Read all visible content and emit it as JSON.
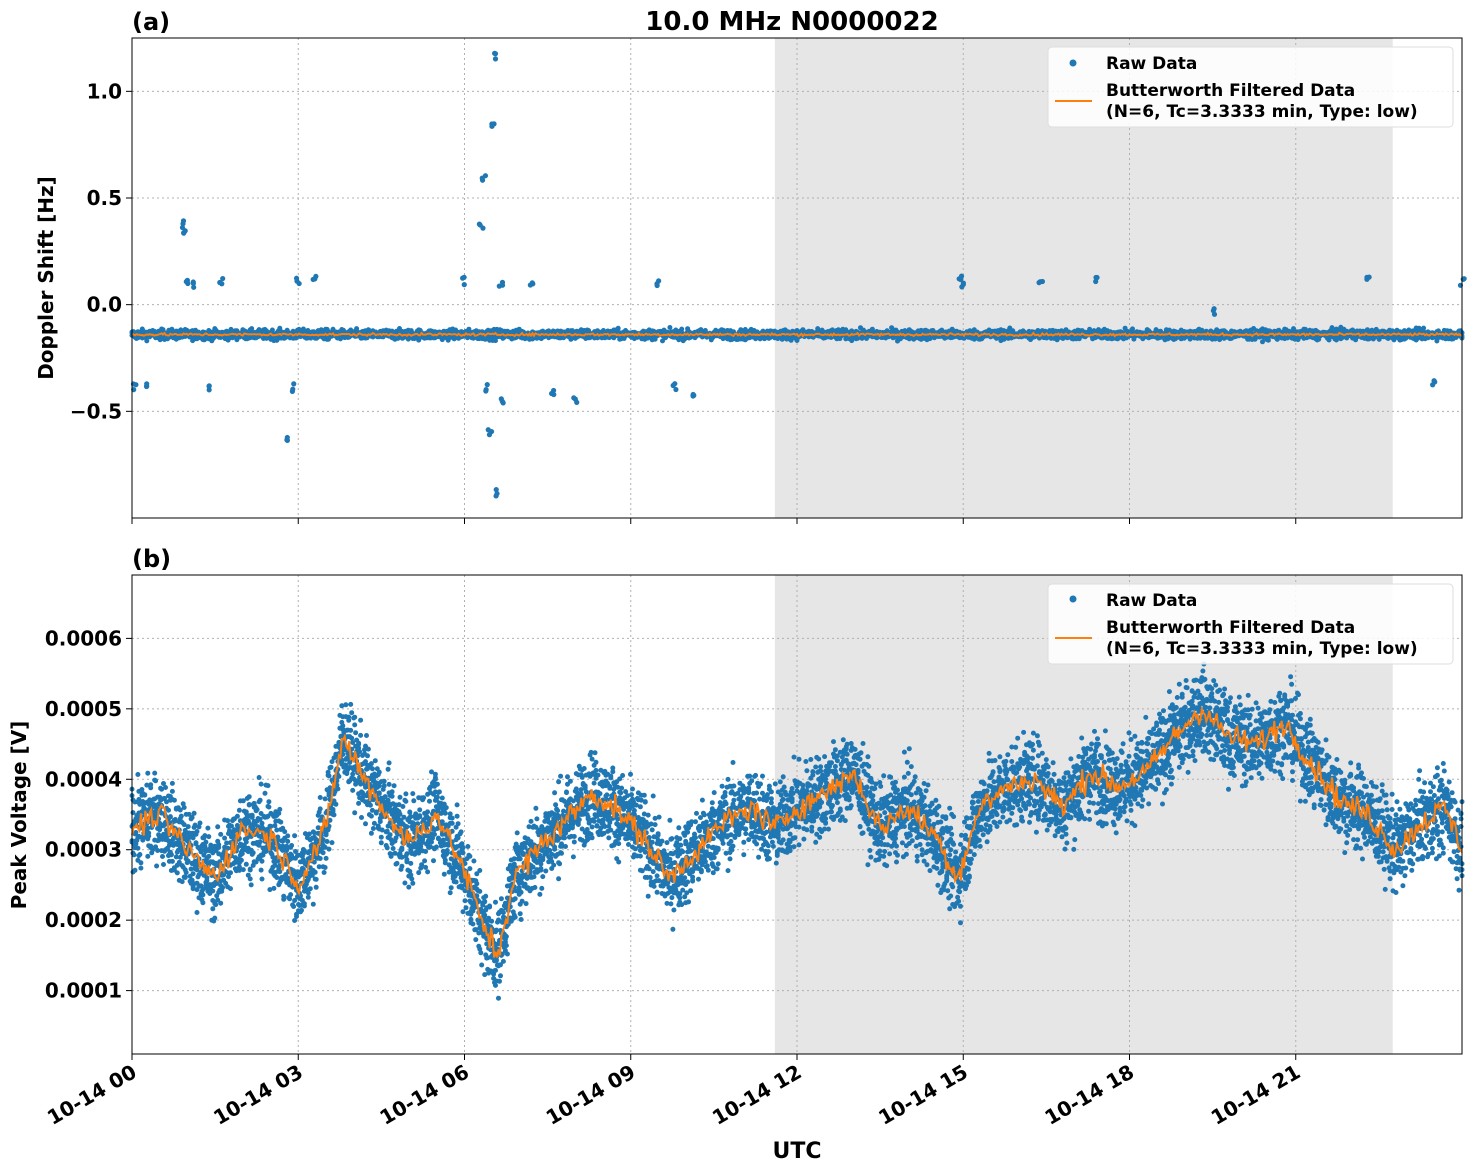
{
  "figure": {
    "title": "10.0 MHz N0000022",
    "xlabel": "UTC",
    "x_ticks": [
      "10-14 00",
      "10-14 03",
      "10-14 06",
      "10-14 09",
      "10-14 12",
      "10-14 15",
      "10-14 18",
      "10-14 21"
    ],
    "colors": {
      "raw": "#1f77b4",
      "filtered": "#ff7f0e",
      "shade": "#e6e6e6",
      "grid": "#b0b0b0"
    }
  },
  "legend": {
    "raw_label": "Raw Data",
    "filtered_label_line1": "Butterworth Filtered Data",
    "filtered_label_line2": "(N=6, Tc=3.3333 min, Type: low)",
    "placement": "top-right"
  },
  "chart_data": [
    {
      "type": "scatter",
      "panel_label": "(a)",
      "ylabel": "Doppler Shift [Hz]",
      "xlim_hours": [
        0,
        24
      ],
      "ylim": [
        -1.0,
        1.25
      ],
      "y_ticks": [
        1.0,
        0.5,
        0.0,
        -0.5
      ],
      "y_tick_labels": [
        "1.0",
        "0.5",
        "0.0",
        "−0.5"
      ],
      "grid": true,
      "shaded_region_hours": [
        11.6,
        22.75
      ],
      "series": [
        {
          "name": "Raw Data",
          "baseline": -0.14,
          "spread": 0.03,
          "outliers": [
            [
              0.05,
              -0.39
            ],
            [
              0.3,
              -0.38
            ],
            [
              0.9,
              0.38
            ],
            [
              0.95,
              0.33
            ],
            [
              1.0,
              0.11
            ],
            [
              1.1,
              0.09
            ],
            [
              1.4,
              -0.38
            ],
            [
              1.6,
              0.11
            ],
            [
              2.8,
              -0.64
            ],
            [
              2.9,
              -0.39
            ],
            [
              3.0,
              0.11
            ],
            [
              3.3,
              0.12
            ],
            [
              6.0,
              0.11
            ],
            [
              6.3,
              0.36
            ],
            [
              6.35,
              0.6
            ],
            [
              6.4,
              -0.39
            ],
            [
              6.45,
              -0.6
            ],
            [
              6.5,
              0.85
            ],
            [
              6.55,
              1.17
            ],
            [
              6.6,
              -0.88
            ],
            [
              6.65,
              0.1
            ],
            [
              6.7,
              -0.45
            ],
            [
              7.2,
              0.1
            ],
            [
              7.6,
              -0.41
            ],
            [
              8.0,
              -0.45
            ],
            [
              9.5,
              0.1
            ],
            [
              9.8,
              -0.38
            ],
            [
              10.1,
              -0.41
            ],
            [
              14.95,
              0.12
            ],
            [
              15.0,
              0.1
            ],
            [
              16.4,
              0.11
            ],
            [
              17.4,
              0.11
            ],
            [
              19.5,
              -0.03
            ],
            [
              22.3,
              0.13
            ],
            [
              23.5,
              -0.37
            ],
            [
              24.0,
              0.11
            ]
          ]
        },
        {
          "name": "Butterworth Filtered Data\n(N=6, Tc=3.3333 min, Type: low)",
          "baseline": -0.14
        }
      ]
    },
    {
      "type": "scatter",
      "panel_label": "(b)",
      "ylabel": "Peak Voltage [V]",
      "xlim_hours": [
        0,
        24
      ],
      "ylim": [
        1e-05,
        0.00069
      ],
      "y_ticks": [
        0.0006,
        0.0005,
        0.0004,
        0.0003,
        0.0002,
        0.0001
      ],
      "y_tick_labels": [
        "0.0006",
        "0.0005",
        "0.0004",
        "0.0003",
        "0.0002",
        "0.0001"
      ],
      "grid": true,
      "shaded_region_hours": [
        11.6,
        22.75
      ],
      "series": [
        {
          "name": "Raw Data",
          "band_halfwidth": 0.00011
        },
        {
          "name": "Butterworth Filtered Data\n(N=6, Tc=3.3333 min, Type: low)",
          "x": [
            0,
            0.5,
            1,
            1.5,
            2,
            2.5,
            3,
            3.5,
            3.8,
            4.2,
            4.6,
            5,
            5.5,
            6,
            6.3,
            6.6,
            6.9,
            7.3,
            7.8,
            8.3,
            8.7,
            9.2,
            9.7,
            10.2,
            10.7,
            11.2,
            11.6,
            12,
            12.5,
            13,
            13.5,
            14,
            14.5,
            14.9,
            15.3,
            15.8,
            16.3,
            16.8,
            17.3,
            17.8,
            18.3,
            18.8,
            19.3,
            19.8,
            20.3,
            20.8,
            21.3,
            21.8,
            22.3,
            22.8,
            23.3,
            23.7,
            24
          ],
          "y": [
            0.00033,
            0.00035,
            0.0003,
            0.00026,
            0.00033,
            0.00032,
            0.00025,
            0.00033,
            0.00046,
            0.0004,
            0.00035,
            0.00031,
            0.00035,
            0.00027,
            0.0002,
            0.00015,
            0.00026,
            0.0003,
            0.00034,
            0.00038,
            0.00036,
            0.00032,
            0.00026,
            0.0003,
            0.00034,
            0.00036,
            0.00033,
            0.00036,
            0.00038,
            0.00041,
            0.00033,
            0.00036,
            0.00032,
            0.00026,
            0.00036,
            0.00039,
            0.0004,
            0.00036,
            0.00041,
            0.00039,
            0.00041,
            0.00046,
            0.0005,
            0.00046,
            0.00045,
            0.00048,
            0.00042,
            0.00037,
            0.00035,
            0.0003,
            0.00034,
            0.00036,
            0.0003
          ]
        }
      ]
    }
  ]
}
